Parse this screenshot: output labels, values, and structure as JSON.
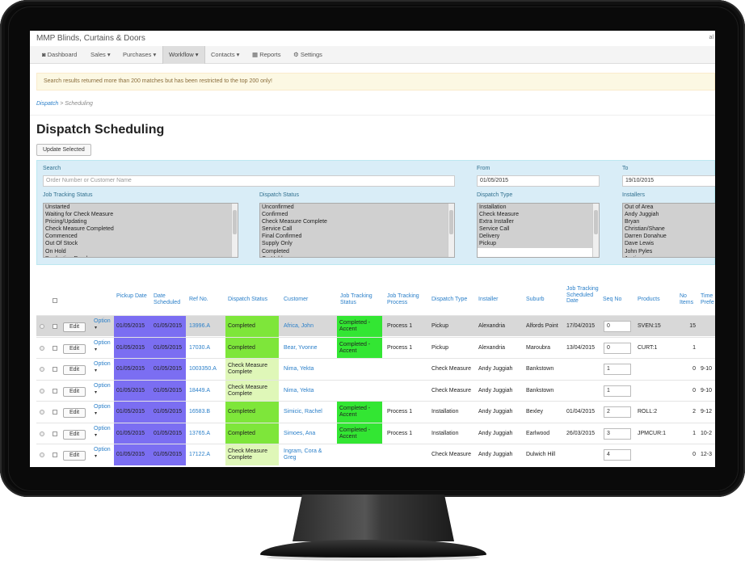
{
  "app": {
    "title": "MMP Blinds, Curtains & Doors",
    "user": "al"
  },
  "nav": [
    {
      "icon": "dashboard-icon",
      "label": "Dashboard",
      "glyph": "◙"
    },
    {
      "label": "Sales ▾"
    },
    {
      "label": "Purchases ▾"
    },
    {
      "label": "Workflow ▾",
      "active": true
    },
    {
      "label": "Contacts ▾"
    },
    {
      "icon": "reports-icon",
      "label": "Reports",
      "glyph": "▦"
    },
    {
      "icon": "settings-icon",
      "label": "Settings",
      "glyph": "⚙"
    }
  ],
  "alert": "Search results returned more than 200 matches but has been restricted to the top 200 only!",
  "breadcrumb": {
    "link": "Dispatch",
    "sep": ">",
    "current": "Scheduling"
  },
  "page_title": "Dispatch Scheduling",
  "update_button": "Update Selected",
  "filters": {
    "search_label": "Search",
    "search_placeholder": "Order Number or Customer Name",
    "from_label": "From",
    "from_value": "01/05/2015",
    "to_label": "To",
    "to_value": "19/10/2015",
    "job_tracking_label": "Job Tracking Status",
    "job_tracking_options": [
      "Unstarted",
      "Waiting for Check Measure",
      "Pricing/Updating",
      "Check Measure Completed",
      "Commenced",
      "Out Of Stock",
      "On Hold",
      "Production Ready"
    ],
    "dispatch_status_label": "Dispatch Status",
    "dispatch_status_options": [
      "Unconfirmed",
      "Confirmed",
      "Check Measure Complete",
      "Service Call",
      "Final Confirmed",
      "Supply Only",
      "Completed",
      "On Hold"
    ],
    "dispatch_type_label": "Dispatch Type",
    "dispatch_type_options": [
      "Installation",
      "Check Measure",
      "Extra Installer",
      "Service Call",
      "Delivery",
      "Pickup"
    ],
    "installers_label": "Installers",
    "installers_options": [
      "Out of Area",
      "Andy Juggiah",
      "Bryan",
      "Christian/Shane",
      "Darren Donahue",
      "Dave Lewis",
      "John Pyles",
      "Justin"
    ]
  },
  "table": {
    "headers": {
      "pickup": "Pickup Date",
      "sched": "Date Scheduled",
      "ref": "Ref No.",
      "dstat": "Dispatch Status",
      "customer": "Customer",
      "jts": "Job Tracking Status",
      "jtp": "Job Tracking Process",
      "dtype": "Dispatch Type",
      "installer": "Installer",
      "suburb": "Suburb",
      "jtsd": "Job Tracking Scheduled Date",
      "seq": "Seq No",
      "products": "Products",
      "noitems": "No Items",
      "time": "Time Prefe"
    },
    "edit_label": "Edit",
    "option_label": "Option",
    "rows": [
      {
        "pickup": "01/05/2015",
        "sched": "01/05/2015",
        "ref": "13996.A",
        "dstat": "Completed",
        "dcolor": "green",
        "customer": "Africa, John",
        "jts": "Completed - Accent",
        "jtp": "Process 1",
        "dtype": "Pickup",
        "installer": "Alexandria",
        "suburb": "Alfords Point",
        "jtsd": "17/04/2015",
        "seq": "0",
        "products": "SVEN:15",
        "noitems": "15",
        "time": "",
        "selected": true
      },
      {
        "pickup": "01/05/2015",
        "sched": "01/05/2015",
        "ref": "17030.A",
        "dstat": "Completed",
        "dcolor": "green",
        "customer": "Bear, Yvonne",
        "jts": "Completed - Accent",
        "jtp": "Process 1",
        "dtype": "Pickup",
        "installer": "Alexandria",
        "suburb": "Maroubra",
        "jtsd": "13/04/2015",
        "seq": "0",
        "products": "CURT:1",
        "noitems": "1",
        "time": ""
      },
      {
        "pickup": "01/05/2015",
        "sched": "01/05/2015",
        "ref": "1003350.A",
        "dstat": "Check Measure Complete",
        "dcolor": "pale",
        "customer": "Nima, Yekta",
        "jts": "",
        "jtp": "",
        "dtype": "Check Measure",
        "installer": "Andy Juggiah",
        "suburb": "Bankstown",
        "jtsd": "",
        "seq": "1",
        "products": "",
        "noitems": "0",
        "time": "9-10"
      },
      {
        "pickup": "01/05/2015",
        "sched": "01/05/2015",
        "ref": "18449.A",
        "dstat": "Check Measure Complete",
        "dcolor": "pale",
        "customer": "Nima, Yekta",
        "jts": "",
        "jtp": "",
        "dtype": "Check Measure",
        "installer": "Andy Juggiah",
        "suburb": "Bankstown",
        "jtsd": "",
        "seq": "1",
        "products": "",
        "noitems": "0",
        "time": "9-10"
      },
      {
        "pickup": "01/05/2015",
        "sched": "01/05/2015",
        "ref": "16583.B",
        "dstat": "Completed",
        "dcolor": "green",
        "customer": "Simicic, Rachel",
        "jts": "Completed - Accent",
        "jtp": "Process 1",
        "dtype": "Installation",
        "installer": "Andy Juggiah",
        "suburb": "Bexley",
        "jtsd": "01/04/2015",
        "seq": "2",
        "products": "ROLL:2",
        "noitems": "2",
        "time": "9-12"
      },
      {
        "pickup": "01/05/2015",
        "sched": "01/05/2015",
        "ref": "13765.A",
        "dstat": "Completed",
        "dcolor": "green",
        "customer": "Simoes, Ana",
        "jts": "Completed - Accent",
        "jtp": "Process 1",
        "dtype": "Installation",
        "installer": "Andy Juggiah",
        "suburb": "Earlwood",
        "jtsd": "26/03/2015",
        "seq": "3",
        "products": "JPMCUR:1",
        "noitems": "1",
        "time": "10-2"
      },
      {
        "pickup": "01/05/2015",
        "sched": "01/05/2015",
        "ref": "17122.A",
        "dstat": "Check Measure Complete",
        "dcolor": "pale",
        "customer": "Ingram, Cora & Greg",
        "jts": "",
        "jtp": "",
        "dtype": "Check Measure",
        "installer": "Andy Juggiah",
        "suburb": "Dulwich Hill",
        "jtsd": "",
        "seq": "4",
        "products": "",
        "noitems": "0",
        "time": "12-3"
      }
    ]
  }
}
